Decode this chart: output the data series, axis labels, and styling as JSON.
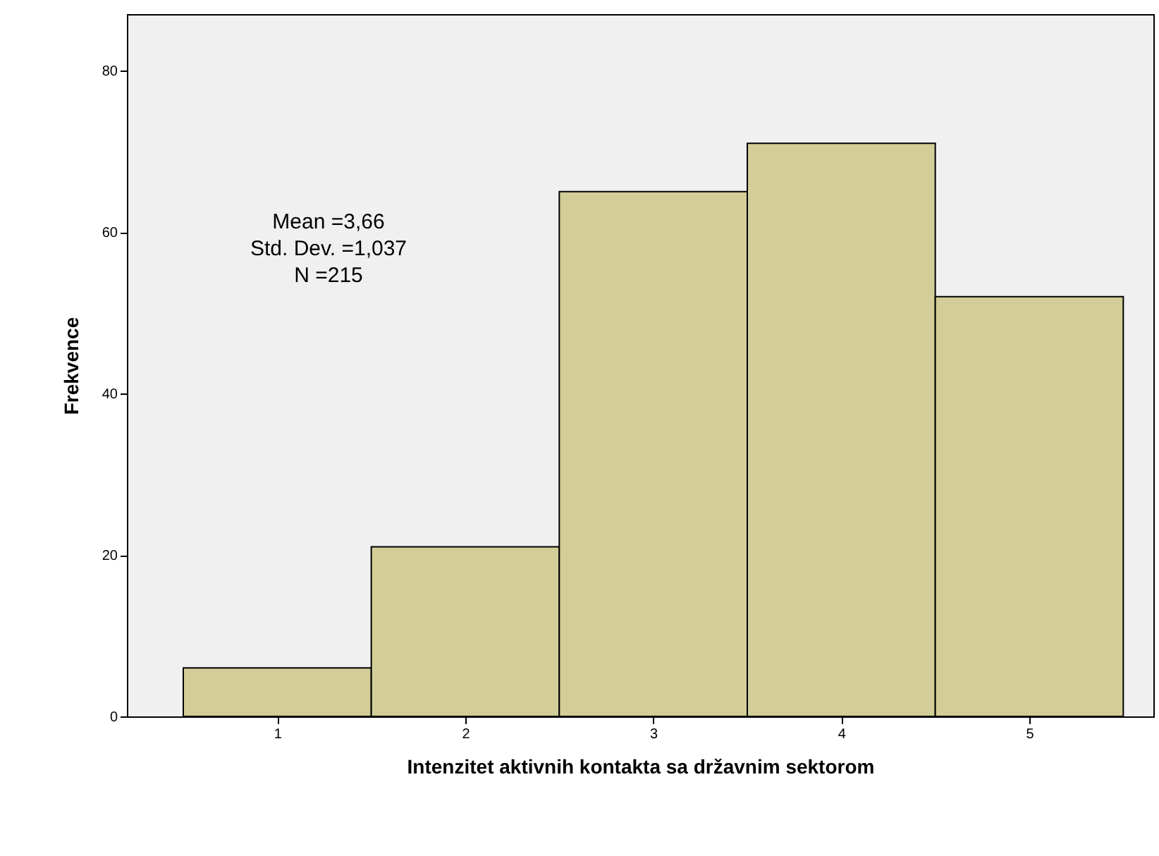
{
  "chart_data": {
    "type": "histogram",
    "xlabel": "Intenzitet aktivnih kontakta sa državnim sektorom",
    "ylabel": "Frekvence",
    "bins": [
      0.5,
      1.5,
      2.5,
      3.5,
      4.5,
      5.5
    ],
    "values": [
      6,
      21,
      65,
      71,
      52
    ],
    "color": "#d3ce97",
    "xlim": [
      0.2,
      5.66
    ],
    "xticks": [
      1,
      2,
      3,
      4,
      5
    ],
    "ylim": [
      0,
      87
    ],
    "yticks": [
      0,
      20,
      40,
      60,
      80
    ],
    "annotations": [
      "Mean =3,66",
      "Std. Dev. =1,037",
      "N =215"
    ]
  }
}
